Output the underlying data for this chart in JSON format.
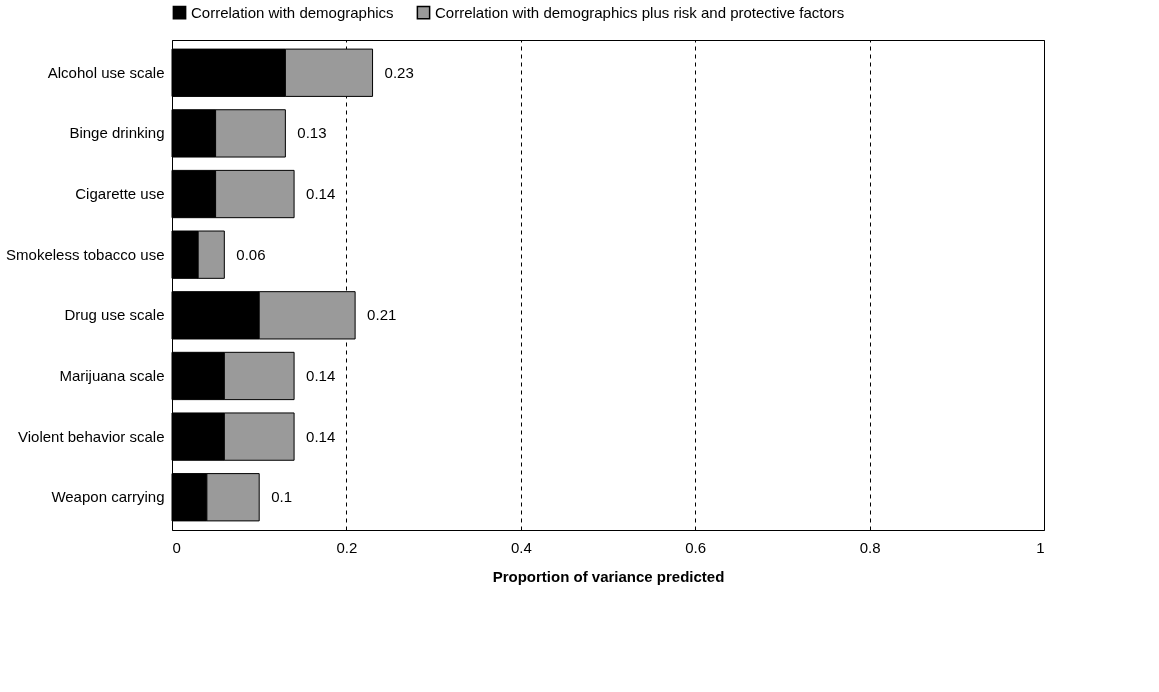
{
  "chart_data": {
    "type": "bar",
    "orientation": "horizontal",
    "stacked": true,
    "xlabel": "Proportion of variance predicted",
    "categories": [
      "Alcohol use scale",
      "Binge drinking",
      "Cigarette use",
      "Smokeless tobacco use",
      "Drug use scale",
      "Marijuana scale",
      "Violent behavior scale",
      "Weapon carrying"
    ],
    "series": [
      {
        "name": "Correlation with demographics",
        "color": "#000000",
        "values": [
          0.13,
          0.05,
          0.05,
          0.03,
          0.1,
          0.06,
          0.06,
          0.04
        ]
      },
      {
        "name": "Correlation with demographics plus risk and protective factors",
        "color": "#9a9a9a",
        "values": [
          0.1,
          0.08,
          0.09,
          0.03,
          0.11,
          0.08,
          0.08,
          0.06
        ]
      }
    ],
    "totals": [
      "0.23",
      "0.13",
      "0.14",
      "0.06",
      "0.21",
      "0.14",
      "0.14",
      "0.1"
    ],
    "xlim": [
      0,
      1
    ],
    "xticks": [
      0,
      0.2,
      0.4,
      0.6,
      0.8,
      1
    ],
    "grid": "x",
    "legend": "top"
  }
}
